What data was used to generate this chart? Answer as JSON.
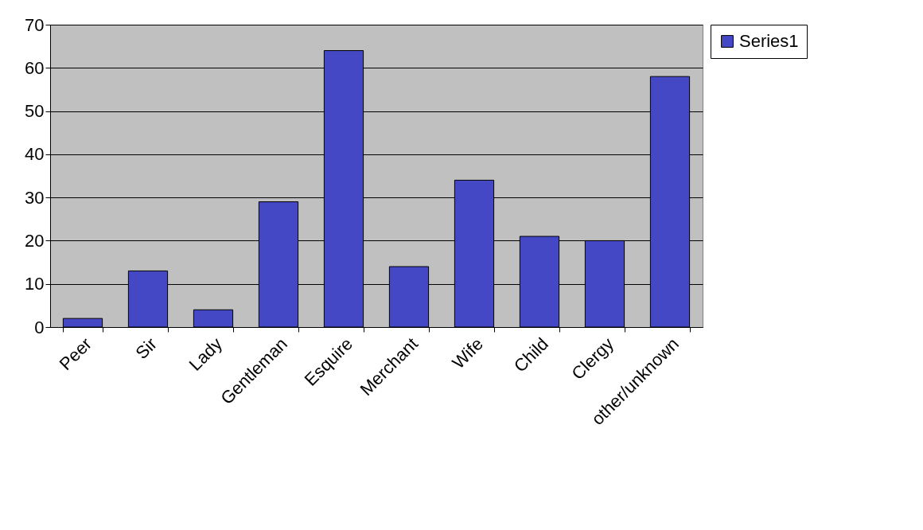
{
  "chart_data": {
    "type": "bar",
    "categories": [
      "Peer",
      "Sir",
      "Lady",
      "Gentleman",
      "Esquire",
      "Merchant",
      "Wife",
      "Child",
      "Clergy",
      "other/unknown"
    ],
    "series": [
      {
        "name": "Series1",
        "color": "#4448c4",
        "values": [
          2,
          13,
          4,
          29,
          64,
          14,
          34,
          21,
          20,
          58
        ]
      }
    ],
    "ylim": [
      0,
      70
    ],
    "yticks": [
      0,
      10,
      20,
      30,
      40,
      50,
      60,
      70
    ],
    "grid": "y",
    "legend": "right"
  }
}
